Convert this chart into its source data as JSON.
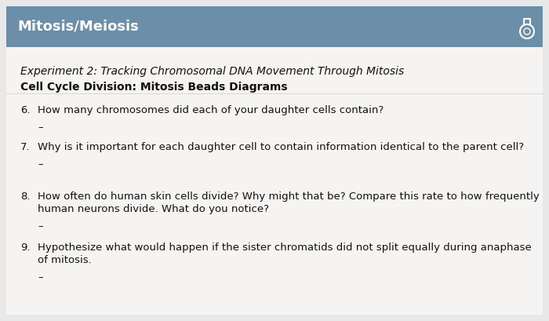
{
  "header_text": "Mitosis/Meiosis",
  "header_bg_color": "#6b8fa8",
  "header_text_color": "#ffffff",
  "body_bg_color": "#e8e8e8",
  "content_bg_color": "#f5f4f2",
  "subtitle_italic": "Experiment 2: Tracking Chromosomal DNA Movement Through Mitosis",
  "subtitle_bold": "Cell Cycle Division: Mitosis Beads Diagrams",
  "questions": [
    {
      "number": "6.",
      "line1": "How many chromosomes did each of your daughter cells contain?",
      "line2": ""
    },
    {
      "number": "7.",
      "line1": "Why is it important for each daughter cell to contain information identical to the parent cell?",
      "line2": ""
    },
    {
      "number": "8.",
      "line1": "How often do human skin cells divide? Why might that be? Compare this rate to how frequently",
      "line2": "human neurons divide. What do you notice?"
    },
    {
      "number": "9.",
      "line1": "Hypothesize what would happen if the sister chromatids did not split equally during anaphase",
      "line2": "of mitosis."
    }
  ],
  "dash": "–",
  "figsize": [
    7.0,
    4.09
  ],
  "dpi": 100
}
